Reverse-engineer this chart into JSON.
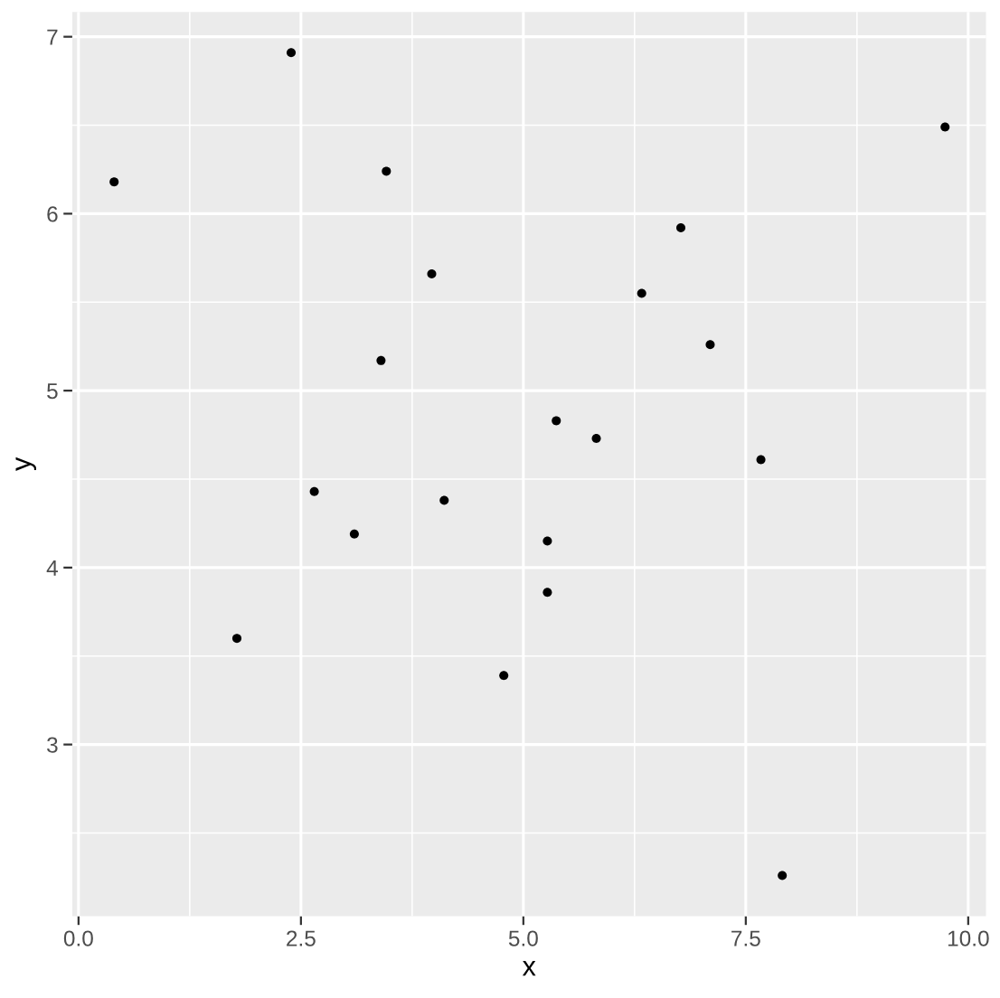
{
  "chart_data": {
    "type": "scatter",
    "xlabel": "x",
    "ylabel": "y",
    "x": [
      0.4,
      2.39,
      3.46,
      3.97,
      3.4,
      9.74,
      6.77,
      6.33,
      7.1,
      5.37,
      5.82,
      7.67,
      2.65,
      3.1,
      4.11,
      1.78,
      4.78,
      5.27,
      5.27,
      7.91
    ],
    "series": [
      {
        "color": "#000000",
        "values": [
          6.18,
          6.91,
          6.24,
          5.66,
          5.17,
          6.49,
          5.92,
          5.55,
          5.26,
          4.83,
          4.73,
          4.61,
          4.43,
          4.19,
          4.38,
          3.6,
          3.39,
          4.15,
          3.86,
          2.26
        ]
      }
    ],
    "xlim": [
      -0.07,
      10.2
    ],
    "ylim": [
      2.03,
      7.14
    ],
    "xticks": [
      {
        "value": 0,
        "label": "0.0"
      },
      {
        "value": 2.5,
        "label": "2.5"
      },
      {
        "value": 5,
        "label": "5.0"
      },
      {
        "value": 7.5,
        "label": "7.5"
      },
      {
        "value": 10,
        "label": "10.0"
      }
    ],
    "yticks": [
      3,
      4,
      5,
      6,
      7
    ],
    "grid": true,
    "marker": "circle"
  }
}
